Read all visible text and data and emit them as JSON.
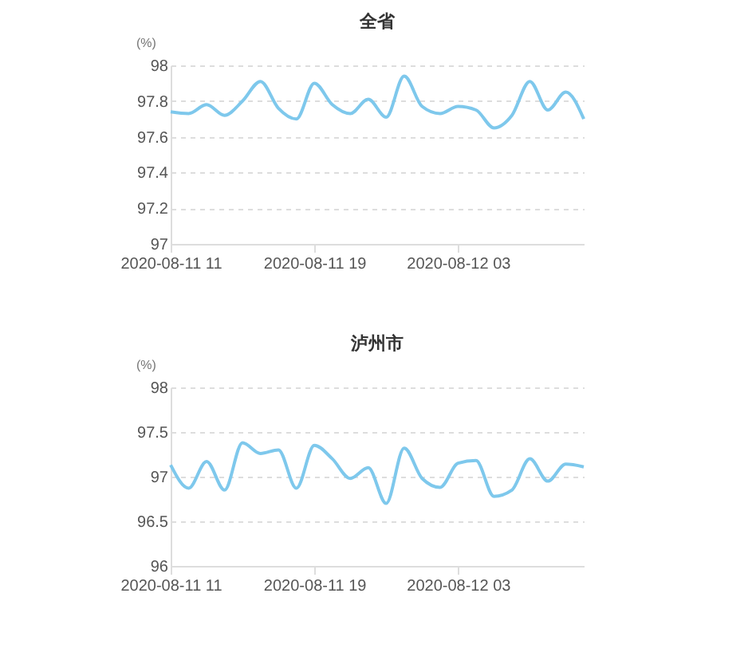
{
  "chart_data": [
    {
      "type": "line",
      "title": "全省",
      "ylabel": "(%)",
      "categories": [
        "2020-08-11 11",
        null,
        null,
        null,
        null,
        null,
        null,
        null,
        "2020-08-11 19",
        null,
        null,
        null,
        null,
        null,
        null,
        null,
        "2020-08-12 03",
        null,
        null,
        null,
        null,
        null,
        null,
        null
      ],
      "series": [
        {
          "color": "#7ec8ec",
          "values": [
            97.74,
            97.73,
            97.78,
            97.72,
            97.8,
            97.91,
            97.76,
            97.7,
            97.9,
            97.78,
            97.73,
            97.81,
            97.71,
            97.94,
            97.77,
            97.73,
            97.77,
            97.75,
            97.65,
            97.72,
            97.91,
            97.75,
            97.85,
            97.7
          ]
        }
      ],
      "ylim": [
        97,
        98
      ],
      "yticks": [
        97,
        97.2,
        97.4,
        97.6,
        97.8,
        98
      ],
      "grid": "y",
      "marker": "none",
      "line_style": "solid",
      "legend": false
    },
    {
      "type": "line",
      "title": "泸州市",
      "ylabel": "(%)",
      "categories": [
        "2020-08-11 11",
        null,
        null,
        null,
        null,
        null,
        null,
        null,
        "2020-08-11 19",
        null,
        null,
        null,
        null,
        null,
        null,
        null,
        "2020-08-12 03",
        null,
        null,
        null,
        null,
        null,
        null,
        null
      ],
      "series": [
        {
          "color": "#7ec8ec",
          "values": [
            97.13,
            96.87,
            97.17,
            96.85,
            97.38,
            97.26,
            97.3,
            96.87,
            97.35,
            97.2,
            96.98,
            97.1,
            96.7,
            97.32,
            96.98,
            96.88,
            97.15,
            97.18,
            96.78,
            96.85,
            97.2,
            96.95,
            97.14,
            97.11
          ]
        }
      ],
      "ylim": [
        96,
        98
      ],
      "yticks": [
        96,
        96.5,
        97,
        97.5,
        98
      ],
      "grid": "y",
      "marker": "none",
      "line_style": "solid",
      "legend": false
    }
  ]
}
